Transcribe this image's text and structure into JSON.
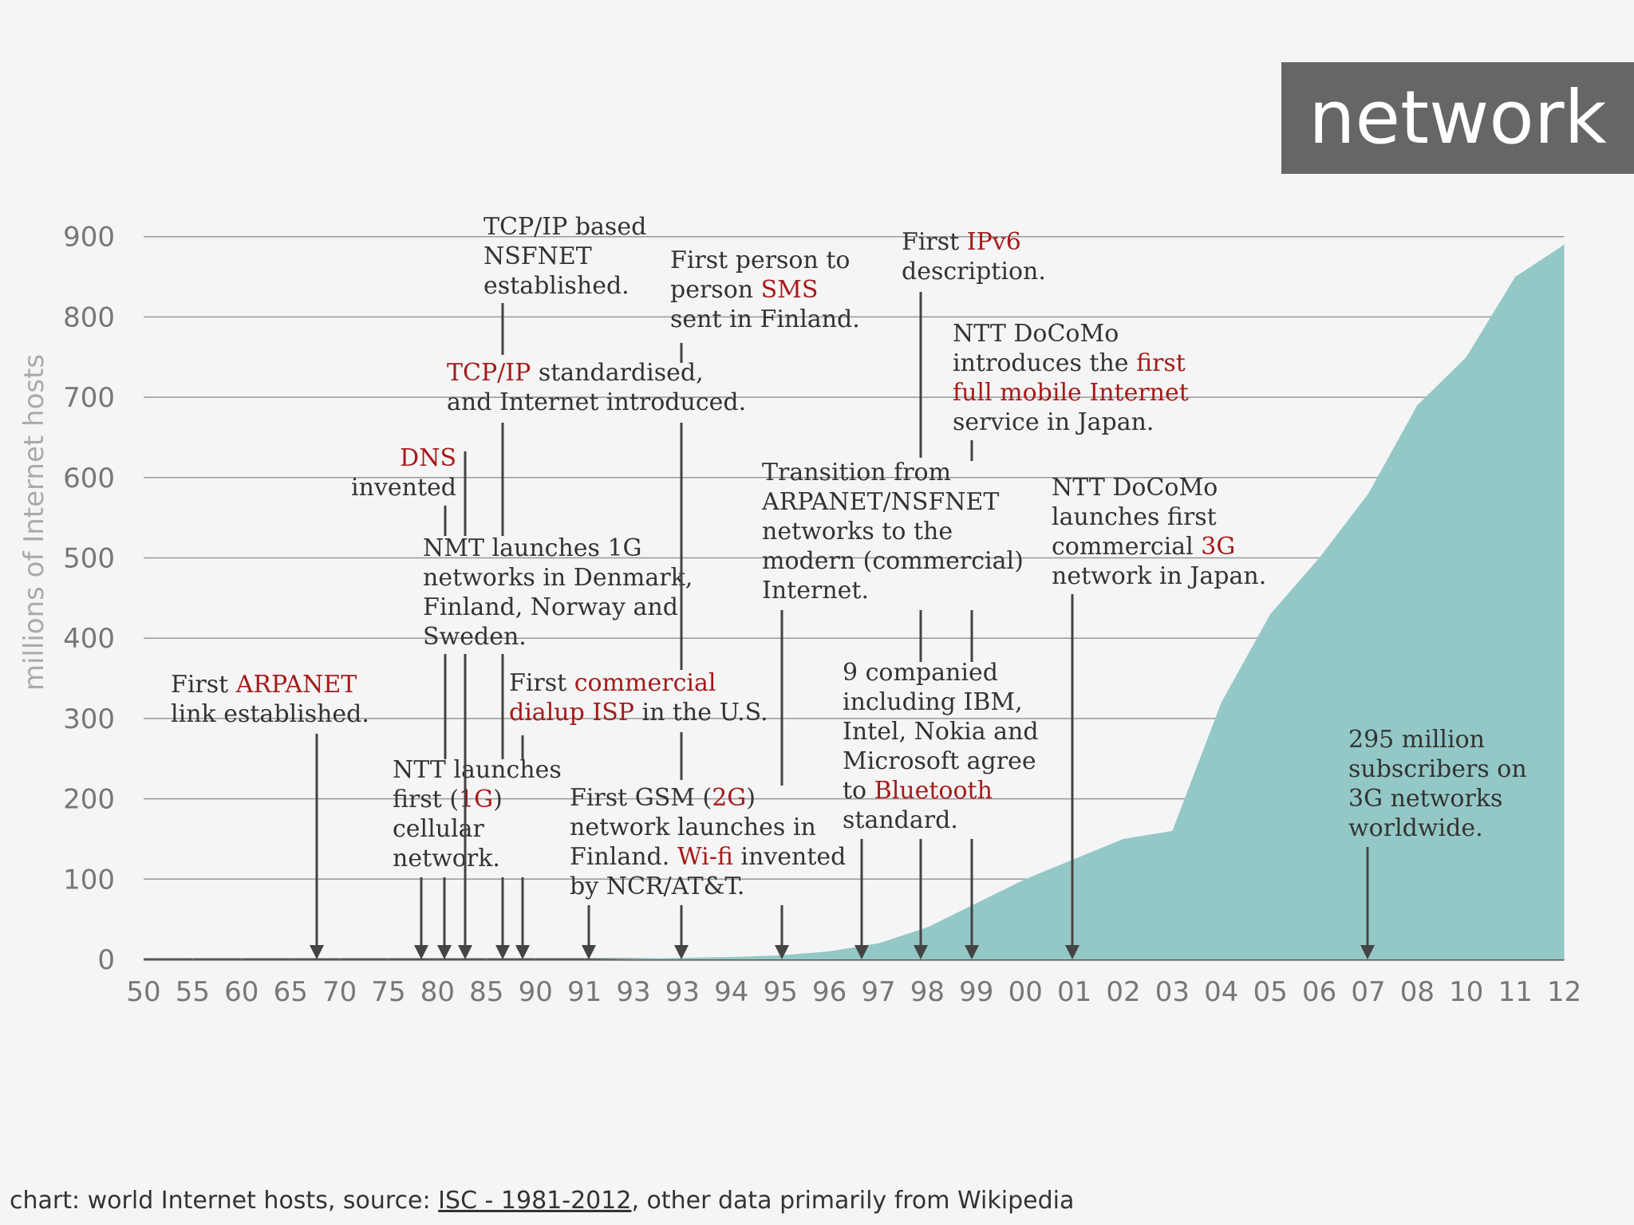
{
  "title": "network",
  "footer": {
    "prefix": "chart: world Internet hosts, source: ",
    "link": "ISC - 1981-2012",
    "suffix": ", other data primarily from Wikipedia"
  },
  "colors": {
    "area": "#93c8c6",
    "highlight": "#a51a1a",
    "text": "#333333",
    "axis": "#777777",
    "grid": "#999999",
    "arrow": "#444444",
    "title_bg": "#666666"
  },
  "chart_data": {
    "type": "area",
    "ylabel": "millions of Internet hosts",
    "ylim": [
      0,
      900
    ],
    "yticks": [
      0,
      100,
      200,
      300,
      400,
      500,
      600,
      700,
      800,
      900
    ],
    "categories": [
      "50",
      "55",
      "60",
      "65",
      "70",
      "75",
      "80",
      "85",
      "90",
      "91",
      "93",
      "93",
      "94",
      "95",
      "96",
      "97",
      "98",
      "99",
      "00",
      "01",
      "02",
      "03",
      "04",
      "05",
      "06",
      "07",
      "08",
      "10",
      "11",
      "12"
    ],
    "values": [
      0,
      0,
      0,
      0,
      0,
      0,
      0,
      0,
      0,
      0,
      1,
      2,
      3,
      5,
      10,
      20,
      40,
      70,
      100,
      125,
      150,
      160,
      320,
      430,
      500,
      580,
      690,
      750,
      850,
      890
    ],
    "grid": true,
    "annotations": [
      {
        "id": "arpanet",
        "segments": [
          [
            "First "
          ],
          [
            "ARPANET",
            true
          ],
          [
            ""
          ],
          [
            "link established."
          ]
        ],
        "target": "70"
      },
      {
        "id": "ntt-1g",
        "segments": [
          [
            "NTT launches"
          ],
          [
            "first ("
          ],
          [
            "1G",
            true
          ],
          [
            ")"
          ],
          [
            "cellular"
          ],
          [
            "network."
          ]
        ],
        "target": "80"
      },
      {
        "id": "dns",
        "segments": [
          [
            "DNS",
            true
          ],
          [
            "invented"
          ]
        ],
        "target": "80"
      },
      {
        "id": "nmt",
        "segments": [
          [
            "NMT launches 1G"
          ],
          [
            "networks in Denmark,"
          ],
          [
            "Finland, Norway and"
          ],
          [
            "Sweden."
          ]
        ],
        "target": "80"
      },
      {
        "id": "tcpip-std",
        "segments": [
          [
            "TCP/IP",
            true
          ],
          [
            " standardised,"
          ],
          [
            "and Internet introduced."
          ]
        ],
        "target": "85"
      },
      {
        "id": "nsfnet",
        "segments": [
          [
            "TCP/IP based"
          ],
          [
            "NSFNET"
          ],
          [
            "established."
          ]
        ],
        "target": "85"
      },
      {
        "id": "dialup",
        "segments": [
          [
            "First "
          ],
          [
            "commercial",
            true
          ],
          [
            "dialup ISP",
            true
          ],
          [
            " in the U.S."
          ]
        ],
        "target": "90"
      },
      {
        "id": "gsm",
        "segments": [
          [
            "First GSM ("
          ],
          [
            "2G",
            true
          ],
          [
            ")"
          ],
          [
            "network launches in"
          ],
          [
            "Finland. "
          ],
          [
            "Wi-fi",
            true
          ],
          [
            " invented"
          ],
          [
            "by NCR/AT&T."
          ]
        ],
        "target": "91"
      },
      {
        "id": "sms",
        "segments": [
          [
            "First person to"
          ],
          [
            "person "
          ],
          [
            "SMS",
            true
          ],
          [
            "sent in Finland."
          ]
        ],
        "target": "93"
      },
      {
        "id": "transition",
        "segments": [
          [
            "Transition from"
          ],
          [
            "ARPANET/NSFNET"
          ],
          [
            "networks to the"
          ],
          [
            "modern (commercial)"
          ],
          [
            "Internet."
          ]
        ],
        "target": "95"
      },
      {
        "id": "bluetooth",
        "segments": [
          [
            "9 companied"
          ],
          [
            "including IBM,"
          ],
          [
            "Intel, Nokia and"
          ],
          [
            "Microsoft agree"
          ],
          [
            "to "
          ],
          [
            "Bluetooth",
            true
          ],
          [
            "standard."
          ]
        ],
        "target": "98"
      },
      {
        "id": "ipv6",
        "segments": [
          [
            "First "
          ],
          [
            "IPv6",
            true
          ],
          [
            "description."
          ]
        ],
        "target": "98"
      },
      {
        "id": "docomo-imode",
        "segments": [
          [
            "NTT DoCoMo"
          ],
          [
            "introduces the "
          ],
          [
            "first",
            true
          ],
          [
            "full mobile Internet",
            true
          ],
          [
            "service in Japan."
          ]
        ],
        "target": "99"
      },
      {
        "id": "docomo-3g",
        "segments": [
          [
            "NTT DoCoMo"
          ],
          [
            "launches first"
          ],
          [
            "commercial "
          ],
          [
            "3G",
            true
          ],
          [
            "network in Japan."
          ]
        ],
        "target": "01"
      },
      {
        "id": "3g-subs",
        "segments": [
          [
            "295 million"
          ],
          [
            "subscribers on"
          ],
          [
            "3G networks"
          ],
          [
            "worldwide."
          ]
        ],
        "target": "07"
      }
    ]
  }
}
